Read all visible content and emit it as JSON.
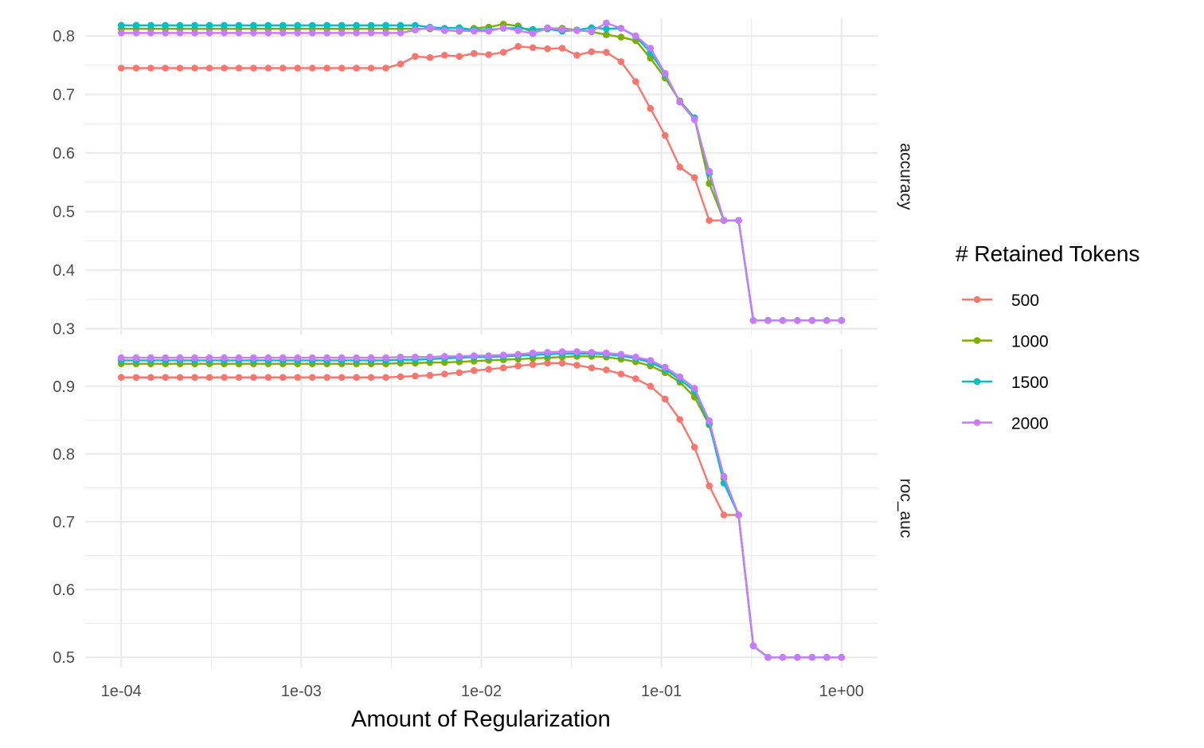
{
  "chart_data": {
    "type": "line",
    "xlabel": "Amount of Regularization",
    "x_scale": "log10",
    "xlim": [
      0.0001,
      1
    ],
    "x_ticks": [
      0.0001,
      0.001,
      0.01,
      0.1,
      1
    ],
    "x_tick_labels": [
      "1e-04",
      "1e-03",
      "1e-02",
      "1e-01",
      "1e+00"
    ],
    "grid": true,
    "legend": {
      "title": "# Retained Tokens",
      "placement": "right",
      "entries": [
        " 500",
        "1000",
        "1500",
        "2000"
      ]
    },
    "series_colors": {
      "500": "#F8766D",
      "1000": "#7CAE00",
      "1500": "#00BFC4",
      "2000": "#C77CFF"
    },
    "x": [
      0.0001,
      0.000121,
      0.000146,
      0.000176,
      0.000212,
      0.000256,
      0.000309,
      0.000373,
      0.00045,
      0.000543,
      0.000655,
      0.00079,
      0.000954,
      0.001151,
      0.001389,
      0.001677,
      0.002024,
      0.002442,
      0.002947,
      0.003556,
      0.004292,
      0.005179,
      0.00625,
      0.007543,
      0.009103,
      0.010985,
      0.013257,
      0.015999,
      0.019307,
      0.0233,
      0.028118,
      0.033932,
      0.040949,
      0.049417,
      0.059636,
      0.071969,
      0.086851,
      0.104811,
      0.126486,
      0.152642,
      0.184207,
      0.2223,
      0.26827,
      0.323746,
      0.390694,
      0.471487,
      0.568987,
      0.686649,
      0.828643,
      1.0
    ],
    "facets": [
      {
        "label": "accuracy",
        "ylim": [
          0.29,
          0.83
        ],
        "y_ticks": [
          0.3,
          0.4,
          0.5,
          0.6,
          0.7,
          0.8
        ],
        "y_tick_labels": [
          "0.3",
          "0.4",
          "0.5",
          "0.6",
          "0.7",
          "0.8"
        ],
        "series": [
          {
            "name": " 500",
            "values": [
              0.745,
              0.745,
              0.745,
              0.745,
              0.745,
              0.745,
              0.745,
              0.745,
              0.745,
              0.745,
              0.745,
              0.745,
              0.745,
              0.745,
              0.745,
              0.745,
              0.745,
              0.745,
              0.745,
              0.752,
              0.765,
              0.763,
              0.767,
              0.765,
              0.77,
              0.768,
              0.772,
              0.782,
              0.78,
              0.778,
              0.779,
              0.767,
              0.773,
              0.772,
              0.756,
              0.722,
              0.676,
              0.63,
              0.576,
              0.558,
              0.485,
              0.485,
              0.485,
              0.314,
              0.314,
              0.314,
              0.314,
              0.314,
              0.314,
              0.314
            ]
          },
          {
            "name": "1000",
            "values": [
              0.812,
              0.812,
              0.812,
              0.812,
              0.812,
              0.812,
              0.812,
              0.812,
              0.812,
              0.812,
              0.812,
              0.812,
              0.812,
              0.812,
              0.812,
              0.812,
              0.812,
              0.812,
              0.812,
              0.812,
              0.812,
              0.812,
              0.81,
              0.808,
              0.813,
              0.815,
              0.82,
              0.817,
              0.806,
              0.812,
              0.813,
              0.81,
              0.807,
              0.802,
              0.798,
              0.792,
              0.762,
              0.728,
              0.689,
              0.66,
              0.548,
              0.485,
              0.485,
              0.314,
              0.314,
              0.314,
              0.314,
              0.314,
              0.314,
              0.314
            ]
          },
          {
            "name": "1500",
            "values": [
              0.818,
              0.818,
              0.818,
              0.818,
              0.818,
              0.818,
              0.818,
              0.818,
              0.818,
              0.818,
              0.818,
              0.818,
              0.818,
              0.818,
              0.818,
              0.818,
              0.818,
              0.818,
              0.818,
              0.818,
              0.818,
              0.815,
              0.813,
              0.814,
              0.81,
              0.81,
              0.813,
              0.813,
              0.811,
              0.812,
              0.808,
              0.81,
              0.814,
              0.812,
              0.813,
              0.799,
              0.772,
              0.734,
              0.687,
              0.66,
              0.565,
              0.485,
              0.485,
              0.314,
              0.314,
              0.314,
              0.314,
              0.314,
              0.314,
              0.314
            ]
          },
          {
            "name": "2000",
            "values": [
              0.805,
              0.805,
              0.805,
              0.805,
              0.805,
              0.805,
              0.805,
              0.805,
              0.805,
              0.805,
              0.805,
              0.805,
              0.805,
              0.805,
              0.805,
              0.805,
              0.805,
              0.805,
              0.805,
              0.805,
              0.81,
              0.814,
              0.809,
              0.809,
              0.808,
              0.808,
              0.814,
              0.809,
              0.804,
              0.814,
              0.811,
              0.809,
              0.808,
              0.822,
              0.813,
              0.8,
              0.779,
              0.736,
              0.687,
              0.657,
              0.569,
              0.485,
              0.485,
              0.314,
              0.314,
              0.314,
              0.314,
              0.314,
              0.314,
              0.314
            ]
          }
        ]
      },
      {
        "label": "roc_auc",
        "ylim": [
          0.485,
          0.955
        ],
        "y_ticks": [
          0.5,
          0.6,
          0.7,
          0.8,
          0.9
        ],
        "y_tick_labels": [
          "0.5",
          "0.6",
          "0.7",
          "0.8",
          "0.9"
        ],
        "series": [
          {
            "name": " 500",
            "values": [
              0.913,
              0.913,
              0.913,
              0.913,
              0.913,
              0.913,
              0.913,
              0.913,
              0.913,
              0.913,
              0.913,
              0.913,
              0.913,
              0.913,
              0.913,
              0.913,
              0.913,
              0.913,
              0.913,
              0.914,
              0.915,
              0.916,
              0.918,
              0.92,
              0.923,
              0.925,
              0.927,
              0.93,
              0.932,
              0.934,
              0.934,
              0.931,
              0.927,
              0.924,
              0.918,
              0.911,
              0.9,
              0.881,
              0.851,
              0.81,
              0.753,
              0.71,
              0.71,
              0.517,
              0.5,
              0.5,
              0.5,
              0.5,
              0.5,
              0.5
            ]
          },
          {
            "name": "1000",
            "values": [
              0.933,
              0.933,
              0.933,
              0.933,
              0.933,
              0.933,
              0.933,
              0.933,
              0.933,
              0.933,
              0.933,
              0.933,
              0.933,
              0.933,
              0.933,
              0.933,
              0.933,
              0.933,
              0.933,
              0.934,
              0.934,
              0.935,
              0.935,
              0.936,
              0.937,
              0.938,
              0.939,
              0.94,
              0.941,
              0.942,
              0.943,
              0.944,
              0.944,
              0.943,
              0.94,
              0.936,
              0.93,
              0.92,
              0.906,
              0.884,
              0.843,
              0.764,
              0.71,
              0.517,
              0.5,
              0.5,
              0.5,
              0.5,
              0.5,
              0.5
            ]
          },
          {
            "name": "1500",
            "values": [
              0.938,
              0.938,
              0.938,
              0.938,
              0.938,
              0.938,
              0.938,
              0.938,
              0.938,
              0.938,
              0.938,
              0.938,
              0.938,
              0.938,
              0.938,
              0.938,
              0.938,
              0.938,
              0.938,
              0.939,
              0.939,
              0.94,
              0.941,
              0.942,
              0.943,
              0.943,
              0.944,
              0.945,
              0.946,
              0.947,
              0.948,
              0.948,
              0.948,
              0.947,
              0.945,
              0.941,
              0.935,
              0.925,
              0.91,
              0.893,
              0.845,
              0.757,
              0.71,
              0.517,
              0.5,
              0.5,
              0.5,
              0.5,
              0.5,
              0.5
            ]
          },
          {
            "name": "2000",
            "values": [
              0.942,
              0.942,
              0.942,
              0.942,
              0.942,
              0.942,
              0.942,
              0.942,
              0.942,
              0.942,
              0.942,
              0.942,
              0.942,
              0.942,
              0.942,
              0.942,
              0.942,
              0.942,
              0.942,
              0.943,
              0.943,
              0.943,
              0.944,
              0.944,
              0.945,
              0.945,
              0.946,
              0.947,
              0.949,
              0.95,
              0.951,
              0.951,
              0.95,
              0.949,
              0.947,
              0.943,
              0.938,
              0.928,
              0.914,
              0.897,
              0.849,
              0.767,
              0.71,
              0.517,
              0.5,
              0.5,
              0.5,
              0.5,
              0.5,
              0.5
            ]
          }
        ]
      }
    ]
  }
}
